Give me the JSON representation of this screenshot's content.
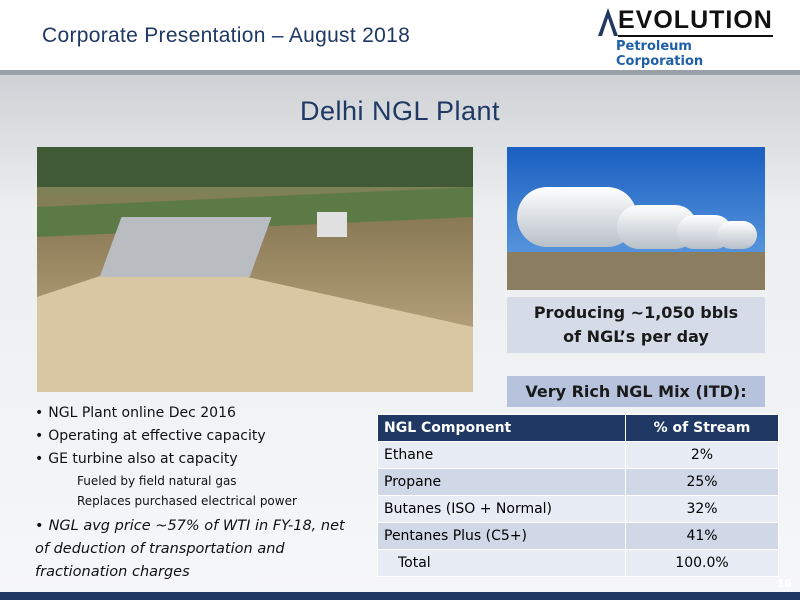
{
  "header": {
    "title": "Corporate Presentation – August 2018",
    "logo": {
      "name": "EVOLUTION",
      "subtitle": "Petroleum Corporation"
    }
  },
  "slide": {
    "title": "Delhi NGL Plant",
    "callout": [
      "Producing ~1,050 bbls",
      "of NGL’s per day"
    ],
    "table": {
      "title": "Very Rich NGL Mix (ITD):",
      "columns": [
        "NGL Component",
        "% of Stream"
      ],
      "rows": [
        [
          "Ethane",
          "2%"
        ],
        [
          "Propane",
          "25%"
        ],
        [
          "Butanes (ISO + Normal)",
          "32%"
        ],
        [
          "Pentanes Plus (C5+)",
          "41%"
        ],
        [
          "Total",
          "100.0%"
        ]
      ]
    },
    "bullets": [
      {
        "text": "NGL Plant online Dec 2016",
        "level": 1
      },
      {
        "text": "Operating at effective capacity",
        "level": 1
      },
      {
        "text": "GE turbine also at capacity",
        "level": 1
      },
      {
        "text": "Fueled by field natural gas",
        "level": 2
      },
      {
        "text": "Replaces purchased electrical power",
        "level": 2
      },
      {
        "text": "NGL avg price ~57% of WTI in FY-18, net of deduction of transportation and fractionation charges",
        "level": 1,
        "italic": true
      }
    ],
    "page_number": "16"
  }
}
